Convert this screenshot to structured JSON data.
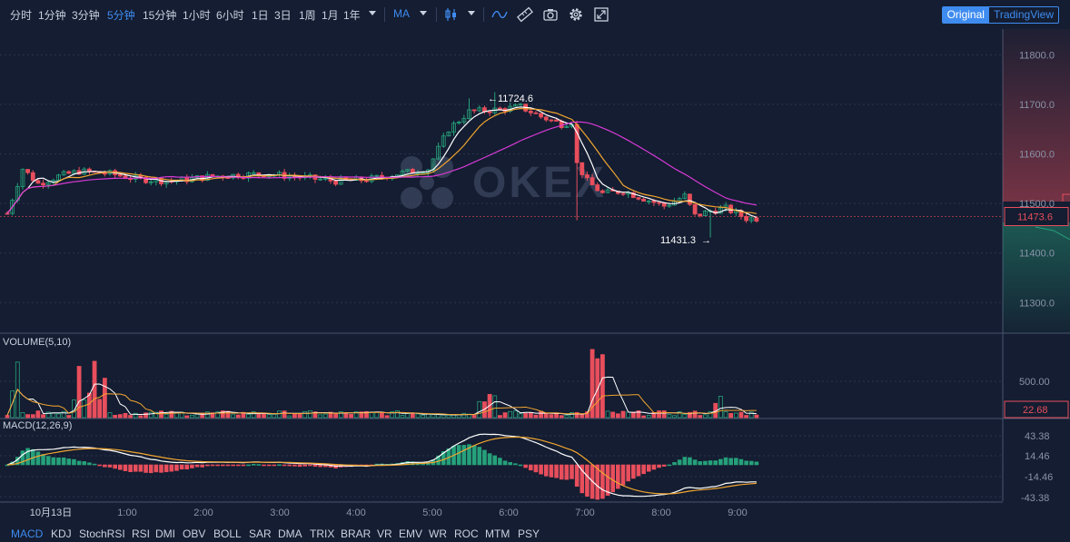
{
  "toolbar": {
    "intervals": [
      {
        "label": "分时",
        "active": false
      },
      {
        "label": "1分钟",
        "active": false
      },
      {
        "label": "3分钟",
        "active": false
      },
      {
        "label": "5分钟",
        "active": true
      },
      {
        "label": "15分钟",
        "active": false
      },
      {
        "label": "1小时",
        "active": false
      },
      {
        "label": "6小时",
        "active": false
      },
      {
        "label": "1日",
        "active": false
      },
      {
        "label": "3日",
        "active": false
      },
      {
        "label": "1周",
        "active": false
      },
      {
        "label": "1月",
        "active": false
      },
      {
        "label": "1年",
        "active": false
      }
    ],
    "indicator_select": "MA",
    "icons": [
      "candlestick-icon",
      "line-style-icon",
      "ruler-icon",
      "camera-icon",
      "gear-icon",
      "fullscreen-icon"
    ],
    "view_original": "Original",
    "view_tradingview": "TradingView"
  },
  "colors": {
    "background": "#141d31",
    "up": "#26a17b",
    "down": "#e84e5c",
    "accent": "#3f8cf0",
    "ma1": "#ffffff",
    "ma2": "#f0a430",
    "ma3": "#d63ad6",
    "dif": "#ffffff",
    "dea": "#f0a430"
  },
  "watermark": "OKEX",
  "chart_data": {
    "type": "candlestick",
    "price_axis": {
      "ticks": [
        "11800.0",
        "11700.0",
        "11600.0",
        "11500.0",
        "11400.0",
        "11300.0"
      ],
      "range": [
        11240,
        11852
      ]
    },
    "current_price": "11473.6",
    "high_annotation": "11724.6",
    "low_annotation": "11431.3",
    "time_axis": [
      "10月13日",
      "1:00",
      "2:00",
      "3:00",
      "4:00",
      "5:00",
      "6:00",
      "7:00",
      "8:00",
      "9:00"
    ],
    "anchors": [
      [
        0,
        11480
      ],
      [
        3,
        11570
      ],
      [
        6,
        11540
      ],
      [
        10,
        11555
      ],
      [
        14,
        11565
      ],
      [
        20,
        11560
      ],
      [
        25,
        11550
      ],
      [
        32,
        11545
      ],
      [
        40,
        11555
      ],
      [
        50,
        11560
      ],
      [
        58,
        11552
      ],
      [
        64,
        11545
      ],
      [
        70,
        11548
      ],
      [
        76,
        11560
      ],
      [
        82,
        11570
      ],
      [
        86,
        11650
      ],
      [
        90,
        11685
      ],
      [
        96,
        11690
      ],
      [
        100,
        11695
      ],
      [
        104,
        11675
      ],
      [
        108,
        11660
      ],
      [
        110,
        11665
      ],
      [
        111,
        11580
      ],
      [
        113,
        11545
      ],
      [
        116,
        11520
      ],
      [
        120,
        11525
      ],
      [
        124,
        11510
      ],
      [
        128,
        11495
      ],
      [
        132,
        11515
      ],
      [
        134,
        11475
      ],
      [
        137,
        11485
      ],
      [
        140,
        11490
      ],
      [
        144,
        11470
      ],
      [
        146,
        11470
      ]
    ],
    "volume": {
      "label": "VOLUME(5,10)",
      "ticks": [
        "500.00"
      ],
      "current": "22.68"
    },
    "macd": {
      "label": "MACD(12,26,9)",
      "ticks": [
        "43.38",
        "14.46",
        "-14.46",
        "-43.38"
      ]
    }
  },
  "bottombar": {
    "indicators": [
      {
        "label": "MACD",
        "active": true
      },
      {
        "label": "KDJ",
        "active": false
      },
      {
        "label": "StochRSI",
        "active": false
      },
      {
        "label": "RSI",
        "active": false
      },
      {
        "label": "DMI",
        "active": false
      },
      {
        "label": "OBV",
        "active": false
      },
      {
        "label": "BOLL",
        "active": false
      },
      {
        "label": "SAR",
        "active": false
      },
      {
        "label": "DMA",
        "active": false
      },
      {
        "label": "TRIX",
        "active": false
      },
      {
        "label": "BRAR",
        "active": false
      },
      {
        "label": "VR",
        "active": false
      },
      {
        "label": "EMV",
        "active": false
      },
      {
        "label": "WR",
        "active": false
      },
      {
        "label": "ROC",
        "active": false
      },
      {
        "label": "MTM",
        "active": false
      },
      {
        "label": "PSY",
        "active": false
      }
    ]
  }
}
